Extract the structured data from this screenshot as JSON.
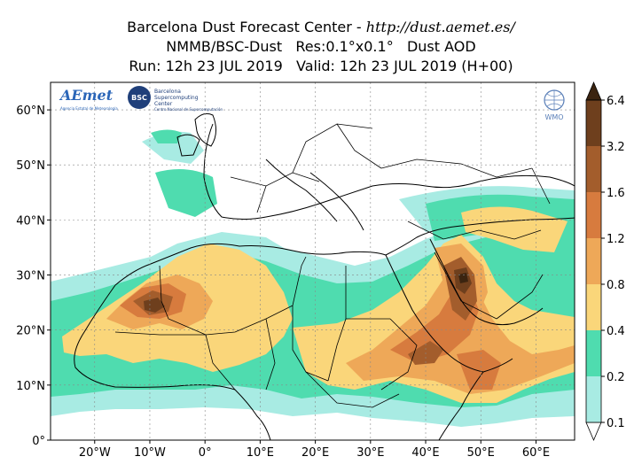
{
  "header": {
    "line1_prefix": "Barcelona Dust Forecast Center - ",
    "line1_url": "http://dust.aemet.es/",
    "line2": "NMMB/BSC-Dust   Res:0.1°x0.1°   Dust AOD",
    "line3": "Run: 12h 23 JUL 2019   Valid: 12h 23 JUL 2019 (H+00)"
  },
  "logos": {
    "aemet_text": "AEmet",
    "aemet_sub": "Agencia Estatal de Meteorología",
    "bsc_badge": "BSC",
    "bsc_text_1": "Barcelona",
    "bsc_text_2": "Supercomputing",
    "bsc_text_3": "Center",
    "bsc_sub": "Centro Nacional de Supercomputación",
    "wmo_text": "WMO"
  },
  "map": {
    "lon_ticks": [
      {
        "value": -20,
        "label": "20°W"
      },
      {
        "value": -10,
        "label": "10°W"
      },
      {
        "value": 0,
        "label": "0°"
      },
      {
        "value": 10,
        "label": "10°E"
      },
      {
        "value": 20,
        "label": "20°E"
      },
      {
        "value": 30,
        "label": "30°E"
      },
      {
        "value": 40,
        "label": "40°E"
      },
      {
        "value": 50,
        "label": "50°E"
      },
      {
        "value": 60,
        "label": "60°E"
      }
    ],
    "lat_ticks": [
      {
        "value": 0,
        "label": "0°"
      },
      {
        "value": 10,
        "label": "10°N"
      },
      {
        "value": 20,
        "label": "20°N"
      },
      {
        "value": 30,
        "label": "30°N"
      },
      {
        "value": 40,
        "label": "40°N"
      },
      {
        "value": 50,
        "label": "50°N"
      },
      {
        "value": 60,
        "label": "60°N"
      }
    ],
    "lon_range": [
      -28,
      67
    ],
    "lat_range": [
      0,
      65
    ],
    "grid": true
  },
  "colorbar": {
    "levels": [
      "0.1",
      "0.2",
      "0.4",
      "0.8",
      "1.2",
      "1.6",
      "3.2",
      "6.4"
    ],
    "colors": [
      "#a8ebe3",
      "#4fdcaf",
      "#fad67a",
      "#eea858",
      "#d77b3e",
      "#a35d2c",
      "#6e3f1d",
      "#3b2410"
    ],
    "extend": "both"
  }
}
